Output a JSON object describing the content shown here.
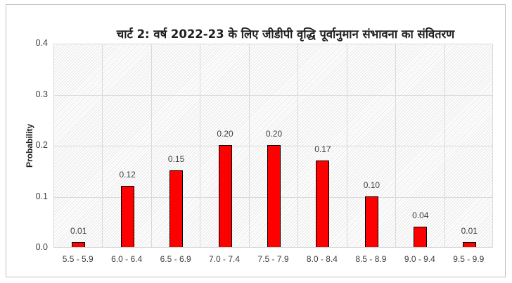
{
  "chart_data": {
    "type": "bar",
    "title": "चार्ट 2: वर्ष 2022-23 के लिए जीडीपी वृद्धि पूर्वानुमान संभावना का संवितरण",
    "xlabel": "",
    "ylabel": "Probability",
    "categories": [
      "5.5 - 5.9",
      "6.0 - 6.4",
      "6.5 - 6.9",
      "7.0 - 7.4",
      "7.5 - 7.9",
      "8.0 - 8.4",
      "8.5 - 8.9",
      "9.0 - 9.4",
      "9.5 - 9.9"
    ],
    "values": [
      0.01,
      0.12,
      0.15,
      0.2,
      0.2,
      0.17,
      0.1,
      0.04,
      0.01
    ],
    "data_labels": [
      "0.01",
      "0.12",
      "0.15",
      "0.20",
      "0.20",
      "0.17",
      "0.10",
      "0.04",
      "0.01"
    ],
    "ylim": [
      0,
      0.4
    ],
    "yticks": [
      "0.0",
      "0.1",
      "0.2",
      "0.3",
      "0.4"
    ],
    "grid": true,
    "legend": null,
    "bar_color": "#FF0000",
    "bar_edge_color": "#000000"
  }
}
